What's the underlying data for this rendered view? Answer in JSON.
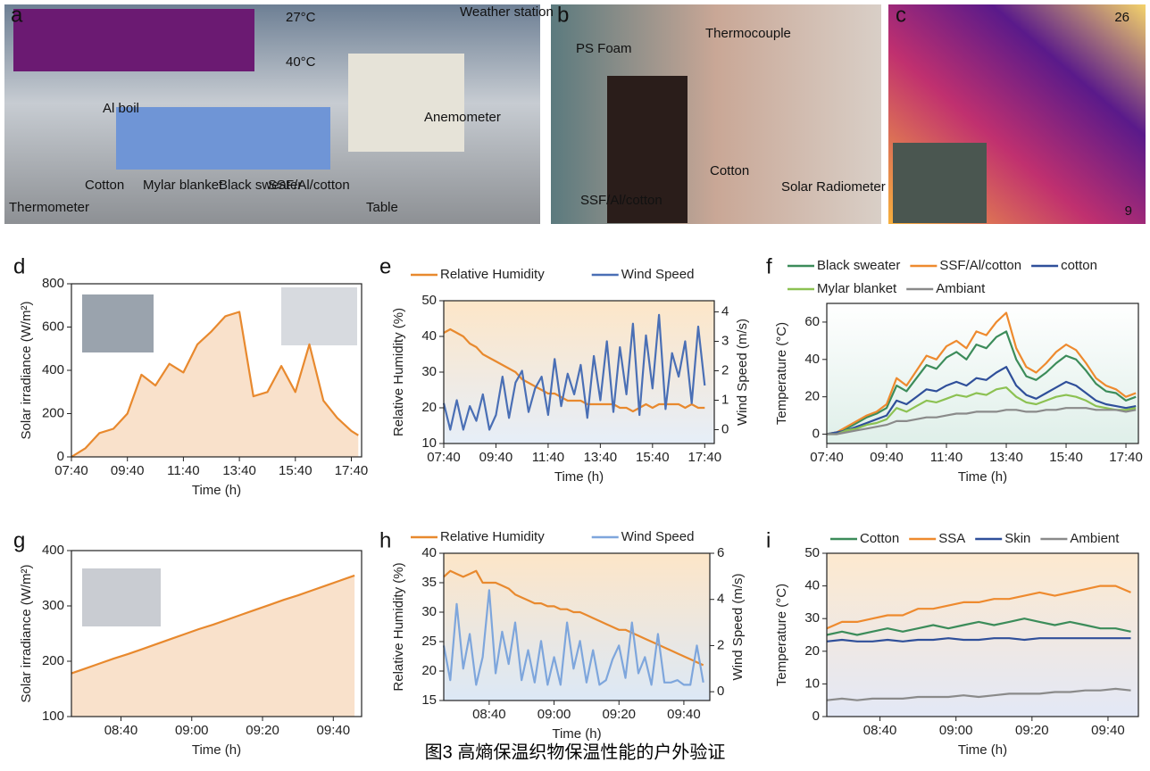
{
  "photos": [
    {
      "label": "a",
      "annotations": [
        "27°C",
        "40°C",
        "Weather station",
        "Al boil",
        "Anemometer",
        "Cotton",
        "Mylar blanket",
        "Black sweater",
        "SSF/Al/cotton",
        "Thermometer",
        "Table"
      ]
    },
    {
      "label": "b",
      "annotations": [
        "PS Foam",
        "Thermocouple",
        "Cotton",
        "Solar Radiometer",
        "SSF/Al/cotton"
      ]
    },
    {
      "label": "c",
      "annotations": [
        "26",
        "9"
      ]
    }
  ],
  "caption": "图3 高熵保温织物保温性能的户外验证",
  "chart_data": [
    {
      "type": "area",
      "label": "d",
      "xlabel": "Time (h)",
      "ylabel": "Solar irradiance (W/m²)",
      "x": [
        460,
        490,
        520,
        550,
        580,
        610,
        640,
        670,
        700,
        730,
        760,
        790,
        820,
        850,
        880,
        910,
        940,
        970,
        1000,
        1030,
        1060,
        1075
      ],
      "xlim": [
        460,
        1082
      ],
      "xticks": [
        {
          "value": 460,
          "label": "07:40"
        },
        {
          "value": 580,
          "label": "09:40"
        },
        {
          "value": 700,
          "label": "11:40"
        },
        {
          "value": 820,
          "label": "13:40"
        },
        {
          "value": 940,
          "label": "15:40"
        },
        {
          "value": 1060,
          "label": "17:40"
        }
      ],
      "ylim": [
        0,
        800
      ],
      "yticks": [
        0,
        200,
        400,
        600,
        800
      ],
      "series": [
        {
          "color": "#e8892e",
          "values": [
            0,
            40,
            110,
            130,
            200,
            380,
            330,
            430,
            390,
            520,
            580,
            650,
            670,
            280,
            300,
            420,
            300,
            520,
            260,
            180,
            120,
            100
          ]
        }
      ]
    },
    {
      "type": "line",
      "label": "e",
      "xlabel": "Time (h)",
      "ylabel": "Relative Humidity (%)",
      "y2label": "Wind Speed (m/s)",
      "background": [
        "#fde6c8",
        "#e6eef8"
      ],
      "x": [
        460,
        475,
        490,
        505,
        520,
        535,
        550,
        565,
        580,
        595,
        610,
        625,
        640,
        655,
        670,
        685,
        700,
        715,
        730,
        745,
        760,
        775,
        790,
        805,
        820,
        835,
        850,
        865,
        880,
        895,
        910,
        925,
        940,
        955,
        970,
        985,
        1000,
        1015,
        1030,
        1045,
        1060
      ],
      "xlim": [
        460,
        1082
      ],
      "xticks": [
        {
          "value": 460,
          "label": "07:40"
        },
        {
          "value": 580,
          "label": "09:40"
        },
        {
          "value": 700,
          "label": "11:40"
        },
        {
          "value": 820,
          "label": "13:40"
        },
        {
          "value": 940,
          "label": "15:40"
        },
        {
          "value": 1060,
          "label": "17:40"
        }
      ],
      "ylim": [
        10,
        50
      ],
      "yticks": [
        10,
        20,
        30,
        40,
        50
      ],
      "y2lim": [
        -0.47,
        4.38
      ],
      "y2ticks": [
        0,
        1,
        2,
        3,
        4
      ],
      "series": [
        {
          "name": "Relative Humidity",
          "color": "#e8892e",
          "values": [
            41,
            42,
            41,
            40,
            38,
            37,
            35,
            34,
            33,
            32,
            31,
            30,
            28,
            27,
            26,
            25,
            24,
            24,
            23,
            22,
            22,
            22,
            21,
            21,
            21,
            21,
            21,
            20,
            20,
            19,
            20,
            21,
            20,
            21,
            21,
            21,
            21,
            20,
            21,
            20,
            20
          ]
        },
        {
          "name": "Wind Speed",
          "color": "#4a6fb5",
          "axis": "y2",
          "values": [
            0.9,
            0,
            1,
            0,
            0.8,
            0.3,
            1.2,
            0,
            0.5,
            1.8,
            0.4,
            1.6,
            2.0,
            0.6,
            1.4,
            1.8,
            0.5,
            2.4,
            0.8,
            1.9,
            1.2,
            2.2,
            0.4,
            2.5,
            1.0,
            3.0,
            0.6,
            2.8,
            1.2,
            3.6,
            0.5,
            3.2,
            1.4,
            3.9,
            0.7,
            2.6,
            1.8,
            3.0,
            0.9,
            3.5,
            1.5
          ]
        }
      ]
    },
    {
      "type": "line",
      "label": "f",
      "xlabel": "Time (h)",
      "ylabel": "Temperature (°C)",
      "background": [
        "#ffffff",
        "#dfefe9"
      ],
      "x": [
        460,
        480,
        500,
        520,
        540,
        560,
        580,
        600,
        620,
        640,
        660,
        680,
        700,
        720,
        740,
        760,
        780,
        800,
        820,
        840,
        860,
        880,
        900,
        920,
        940,
        960,
        980,
        1000,
        1020,
        1040,
        1060,
        1080
      ],
      "xlim": [
        460,
        1085
      ],
      "xticks": [
        {
          "value": 460,
          "label": "07:40"
        },
        {
          "value": 580,
          "label": "09:40"
        },
        {
          "value": 700,
          "label": "11:40"
        },
        {
          "value": 820,
          "label": "13:40"
        },
        {
          "value": 940,
          "label": "15:40"
        },
        {
          "value": 1060,
          "label": "17:40"
        }
      ],
      "ylim": [
        -5,
        70
      ],
      "yticks": [
        0,
        20,
        40,
        60
      ],
      "series": [
        {
          "name": "Black sweater",
          "color": "#3c8c5a",
          "values": [
            0,
            1,
            3,
            6,
            9,
            11,
            14,
            26,
            23,
            30,
            37,
            35,
            41,
            44,
            40,
            48,
            46,
            52,
            55,
            40,
            31,
            29,
            33,
            38,
            42,
            40,
            34,
            27,
            23,
            22,
            18,
            20
          ]
        },
        {
          "name": "SSF/Al/cotton",
          "color": "#ee8a2e",
          "values": [
            0,
            1,
            4,
            7,
            10,
            12,
            16,
            30,
            26,
            34,
            42,
            40,
            47,
            50,
            46,
            55,
            53,
            60,
            65,
            46,
            36,
            33,
            38,
            44,
            48,
            45,
            38,
            30,
            26,
            24,
            20,
            22
          ]
        },
        {
          "name": "cotton",
          "color": "#2f4f9a",
          "values": [
            0,
            1,
            2,
            4,
            6,
            8,
            10,
            18,
            16,
            20,
            24,
            23,
            26,
            28,
            26,
            30,
            29,
            33,
            36,
            26,
            21,
            19,
            22,
            25,
            28,
            26,
            22,
            18,
            16,
            15,
            14,
            15
          ]
        },
        {
          "name": "Mylar blanket",
          "color": "#8cc152",
          "values": [
            0,
            0,
            2,
            3,
            5,
            6,
            8,
            14,
            12,
            15,
            18,
            17,
            19,
            21,
            20,
            22,
            21,
            24,
            25,
            20,
            17,
            16,
            18,
            20,
            21,
            20,
            18,
            15,
            14,
            13,
            13,
            14
          ]
        },
        {
          "name": "Ambiant",
          "color": "#8a8a8a",
          "values": [
            0,
            0,
            1,
            2,
            3,
            4,
            5,
            7,
            7,
            8,
            9,
            9,
            10,
            11,
            11,
            12,
            12,
            12,
            13,
            13,
            12,
            12,
            13,
            13,
            14,
            14,
            14,
            13,
            13,
            13,
            12,
            13
          ]
        }
      ]
    },
    {
      "type": "area",
      "label": "g",
      "xlabel": "Time (h)",
      "ylabel": "Solar irradiance (W/m²)",
      "x": [
        506,
        510,
        514,
        518,
        522,
        526,
        530,
        534,
        538,
        542,
        546,
        550,
        554,
        558,
        562,
        566,
        570,
        574,
        578,
        582,
        586
      ],
      "xlim": [
        506,
        588
      ],
      "xticks": [
        {
          "value": 520,
          "label": "08:40"
        },
        {
          "value": 540,
          "label": "09:00"
        },
        {
          "value": 560,
          "label": "09:20"
        },
        {
          "value": 580,
          "label": "09:40"
        }
      ],
      "ylim": [
        100,
        400
      ],
      "yticks": [
        100,
        200,
        300,
        400
      ],
      "series": [
        {
          "color": "#e8892e",
          "values": [
            178,
            187,
            196,
            205,
            213,
            222,
            231,
            240,
            249,
            258,
            266,
            275,
            284,
            293,
            302,
            311,
            319,
            328,
            337,
            346,
            355
          ]
        }
      ]
    },
    {
      "type": "line",
      "label": "h",
      "xlabel": "Time (h)",
      "ylabel": "Relative Humidity (%)",
      "y2label": "Wind Speed (m/s)",
      "background": [
        "#fde6c8",
        "#dce8f6"
      ],
      "x": [
        506,
        508,
        510,
        512,
        514,
        516,
        518,
        520,
        522,
        524,
        526,
        528,
        530,
        532,
        534,
        536,
        538,
        540,
        542,
        544,
        546,
        548,
        550,
        552,
        554,
        556,
        558,
        560,
        562,
        564,
        566,
        568,
        570,
        572,
        574,
        576,
        578,
        580,
        582,
        584,
        586
      ],
      "xlim": [
        506,
        588
      ],
      "xticks": [
        {
          "value": 520,
          "label": "08:40"
        },
        {
          "value": 540,
          "label": "09:00"
        },
        {
          "value": 560,
          "label": "09:20"
        },
        {
          "value": 580,
          "label": "09:40"
        }
      ],
      "ylim": [
        15,
        40
      ],
      "yticks": [
        15,
        20,
        25,
        30,
        35,
        40
      ],
      "y2lim": [
        -0.38,
        6
      ],
      "y2ticks": [
        0,
        2,
        4,
        6
      ],
      "series": [
        {
          "name": "Relative Humidity",
          "color": "#e8892e",
          "values": [
            36,
            37,
            36.5,
            36,
            36.5,
            37,
            35,
            35,
            35,
            34.5,
            34,
            33,
            32.5,
            32,
            31.5,
            31.5,
            31,
            31,
            30.5,
            30.5,
            30,
            30,
            29.5,
            29,
            28.5,
            28,
            27.5,
            27,
            27,
            26.5,
            26,
            25.5,
            25,
            24.5,
            24,
            23.5,
            23,
            22.5,
            22,
            21.5,
            21
          ]
        },
        {
          "name": "Wind Speed",
          "color": "#7ea6dc",
          "axis": "y2",
          "values": [
            2,
            0.5,
            3.8,
            1,
            2.5,
            0.3,
            1.5,
            4.4,
            0.8,
            2.6,
            1.2,
            3,
            0.5,
            1.8,
            0.4,
            2.2,
            0.3,
            1.5,
            0.3,
            3,
            1,
            2.2,
            0.4,
            1.8,
            0.3,
            0.5,
            1.4,
            2,
            0.6,
            3,
            0.8,
            1.5,
            0.3,
            2.5,
            0.4,
            0.4,
            0.5,
            0.3,
            0.3,
            2,
            0.4
          ]
        }
      ]
    },
    {
      "type": "line",
      "label": "i",
      "xlabel": "Time (h)",
      "ylabel": "Temperature (°C)",
      "background": [
        "#fde9cf",
        "#e3e8f6"
      ],
      "x": [
        506,
        510,
        514,
        518,
        522,
        526,
        530,
        534,
        538,
        542,
        546,
        550,
        554,
        558,
        562,
        566,
        570,
        574,
        578,
        582,
        586
      ],
      "xlim": [
        506,
        588
      ],
      "xticks": [
        {
          "value": 520,
          "label": "08:40"
        },
        {
          "value": 540,
          "label": "09:00"
        },
        {
          "value": 560,
          "label": "09:20"
        },
        {
          "value": 580,
          "label": "09:40"
        }
      ],
      "ylim": [
        0,
        50
      ],
      "yticks": [
        0,
        10,
        20,
        30,
        40,
        50
      ],
      "series": [
        {
          "name": "Cotton",
          "color": "#3c8c5a",
          "values": [
            25,
            26,
            25,
            26,
            27,
            26,
            27,
            28,
            27,
            28,
            29,
            28,
            29,
            30,
            29,
            28,
            29,
            28,
            27,
            27,
            26
          ]
        },
        {
          "name": "SSA",
          "color": "#ee8a2e",
          "values": [
            27,
            29,
            29,
            30,
            31,
            31,
            33,
            33,
            34,
            35,
            35,
            36,
            36,
            37,
            38,
            37,
            38,
            39,
            40,
            40,
            38
          ]
        },
        {
          "name": "Skin",
          "color": "#2f4f9a",
          "values": [
            23,
            23.5,
            23,
            23,
            23.5,
            23,
            23.5,
            23.5,
            24,
            23.5,
            23.5,
            24,
            24,
            23.5,
            24,
            24,
            24,
            24,
            24,
            24,
            24
          ]
        },
        {
          "name": "Ambient",
          "color": "#8a8a8a",
          "values": [
            5,
            5.5,
            5,
            5.5,
            5.5,
            5.5,
            6,
            6,
            6,
            6.5,
            6,
            6.5,
            7,
            7,
            7,
            7.5,
            7.5,
            8,
            8,
            8.5,
            8
          ]
        }
      ]
    }
  ]
}
